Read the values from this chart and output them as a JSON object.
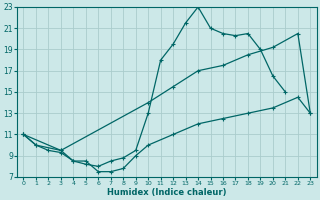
{
  "xlabel": "Humidex (Indice chaleur)",
  "bg_color": "#cce8e8",
  "grid_color": "#aacccc",
  "line_color": "#006666",
  "xlim": [
    -0.5,
    23.5
  ],
  "ylim": [
    7,
    23
  ],
  "xticks": [
    0,
    1,
    2,
    3,
    4,
    5,
    6,
    7,
    8,
    9,
    10,
    11,
    12,
    13,
    14,
    15,
    16,
    17,
    18,
    19,
    20,
    21,
    22,
    23
  ],
  "yticks": [
    7,
    9,
    11,
    13,
    15,
    17,
    19,
    21,
    23
  ],
  "line1_x": [
    0,
    1,
    2,
    3,
    4,
    5,
    6,
    7,
    8,
    9,
    10,
    11,
    12,
    13,
    14,
    15,
    16,
    17,
    18,
    19,
    20,
    21
  ],
  "line1_y": [
    11,
    10,
    9.5,
    9.3,
    8.5,
    8.2,
    8.0,
    8.5,
    8.8,
    9.5,
    13,
    18,
    19.5,
    21.5,
    23,
    21,
    20.5,
    20.3,
    20.5,
    19,
    16.5,
    15
  ],
  "line2_x": [
    0,
    3,
    10,
    12,
    14,
    16,
    18,
    20,
    22,
    23
  ],
  "line2_y": [
    11,
    9.5,
    14,
    15.5,
    17,
    17.5,
    18.5,
    19.2,
    20.5,
    13
  ],
  "line3_x": [
    0,
    1,
    3,
    4,
    5,
    6,
    7,
    8,
    9,
    10,
    12,
    14,
    16,
    18,
    20,
    22,
    23
  ],
  "line3_y": [
    11,
    10,
    9.5,
    8.5,
    8.5,
    7.5,
    7.5,
    7.8,
    9,
    10,
    11,
    12,
    12.5,
    13,
    13.5,
    14.5,
    13
  ],
  "tick_fontsize": 5,
  "xlabel_fontsize": 6,
  "linewidth": 0.9,
  "markersize": 3
}
